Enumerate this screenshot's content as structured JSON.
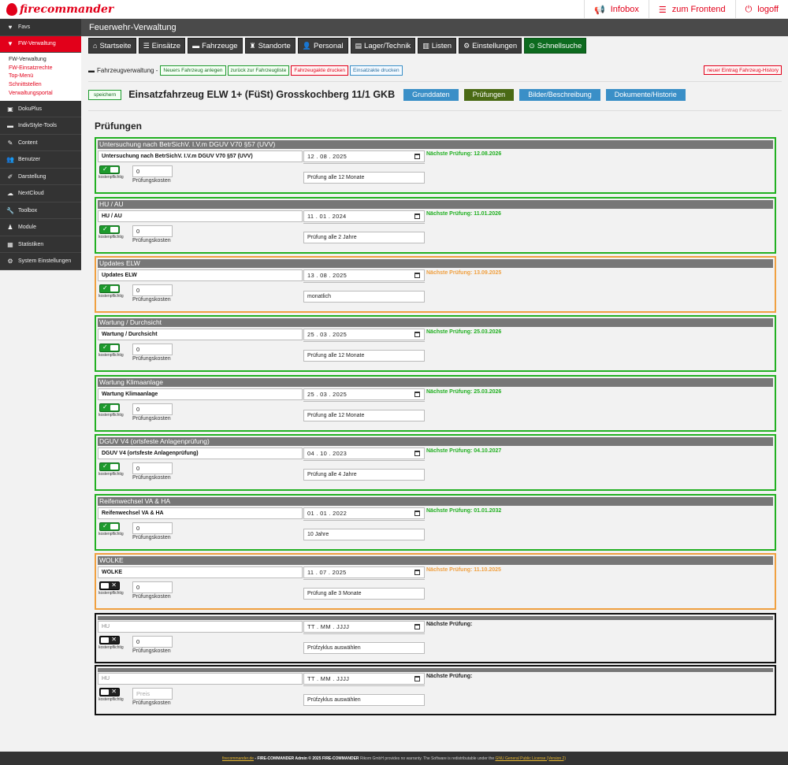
{
  "app": {
    "logo_text": "firecommander",
    "header_title": "Feuerwehr-Verwaltung"
  },
  "topnav": [
    {
      "icon": "bullhorn-icon",
      "glyph": "📢",
      "label": "Infobox"
    },
    {
      "icon": "list-icon",
      "glyph": "☰",
      "label": "zum Frontend"
    },
    {
      "icon": "power-icon",
      "glyph": "⏻",
      "label": "logoff"
    }
  ],
  "sidebar": {
    "items_top": [
      {
        "icon": "heart-icon",
        "glyph": "♥",
        "label": "Favs",
        "active": false
      },
      {
        "icon": "fire-extinguisher-icon",
        "glyph": "▼",
        "label": "FW-Verwaltung",
        "active": true
      }
    ],
    "submenu": [
      {
        "label": "FW-Verwaltung",
        "current": true
      },
      {
        "label": "FW-Einsatzrechte",
        "current": false
      },
      {
        "label": "Top-Menü",
        "current": false
      },
      {
        "label": "Schnittstellen",
        "current": false
      },
      {
        "label": "Verwaltungsportal",
        "current": false
      }
    ],
    "items_bottom": [
      {
        "icon": "doku-icon",
        "glyph": "▣",
        "label": "DokuPlus"
      },
      {
        "icon": "folder-icon",
        "glyph": "▬",
        "label": "IndivStyle-Tools"
      },
      {
        "icon": "pencil-icon",
        "glyph": "✎",
        "label": "Content"
      },
      {
        "icon": "users-icon",
        "glyph": "👥",
        "label": "Benutzer"
      },
      {
        "icon": "brush-icon",
        "glyph": "✐",
        "label": "Darstellung"
      },
      {
        "icon": "cloud-icon",
        "glyph": "☁",
        "label": "NextCloud"
      },
      {
        "icon": "wrench-icon",
        "glyph": "🔧",
        "label": "Toolbox"
      },
      {
        "icon": "modules-icon",
        "glyph": "♟",
        "label": "Module"
      },
      {
        "icon": "chart-icon",
        "glyph": "▦",
        "label": "Statistiken"
      },
      {
        "icon": "cogs-icon",
        "glyph": "⚙",
        "label": "System Einstellungen"
      }
    ]
  },
  "mainnav": [
    {
      "icon": "home-icon",
      "glyph": "⌂",
      "label": "Startseite",
      "green": false
    },
    {
      "icon": "list-icon",
      "glyph": "☰",
      "label": "Einsätze",
      "green": false
    },
    {
      "icon": "truck-icon",
      "glyph": "▬",
      "label": "Fahrzeuge",
      "green": false
    },
    {
      "icon": "building-icon",
      "glyph": "♜",
      "label": "Standorte",
      "green": false
    },
    {
      "icon": "user-icon",
      "glyph": "👤",
      "label": "Personal",
      "green": false
    },
    {
      "icon": "storage-icon",
      "glyph": "▤",
      "label": "Lager/Technik",
      "green": false
    },
    {
      "icon": "chart-bar-icon",
      "glyph": "▥",
      "label": "Listen",
      "green": false
    },
    {
      "icon": "gear-icon",
      "glyph": "⚙",
      "label": "Einstellungen",
      "green": false
    },
    {
      "icon": "circle-check-icon",
      "glyph": "⊙",
      "label": "Schnellsuche",
      "green": true
    }
  ],
  "toolbar": {
    "label": "Fahrzeugverwaltung -",
    "buttons": [
      {
        "label": "Neuers Fahrzeug anlegen",
        "style": "g"
      },
      {
        "label": "zurück zur Fahrzeugliste",
        "style": "g"
      },
      {
        "label": "Fahrzeugakte drucken",
        "style": "r"
      },
      {
        "label": "Einsatzakte drucken",
        "style": "b"
      }
    ],
    "history_label": "neuer Eintrag Fahrzeug-History"
  },
  "vehicle": {
    "save_label": "speichern",
    "title": "Einsatzfahrzeug ELW 1+ (FüSt) Grosskochberg 11/1 GKB",
    "tabs": [
      {
        "label": "Grunddaten",
        "style": "blue"
      },
      {
        "label": "Prüfungen",
        "style": "olive"
      },
      {
        "label": "Bilder/Beschreibung",
        "style": "blue"
      },
      {
        "label": "Dokumente/Historie",
        "style": "blue"
      }
    ]
  },
  "section_title": "Prüfungen",
  "labels": {
    "kostenpflichtig": "kostenpflichtig",
    "pruefungskosten": "Prüfungskosten",
    "naechste": "Nächste Prüfung:"
  },
  "inspections": [
    {
      "header": "Untersuchung nach BetrSichV. I.V.m DGUV V70 §57 (UVV)",
      "name": "Untersuchung nach BetrSichV. I.V.m DGUV V70 §57 (UVV)",
      "date": "12 . 08 . 2025",
      "next": "Nächste Prüfung: 12.08.2026",
      "status": "green",
      "toggle_on": true,
      "price": "0",
      "cycle": "Prüfung alle 12 Monate"
    },
    {
      "header": "HU / AU",
      "name": "HU / AU",
      "date": "11 . 01 . 2024",
      "next": "Nächste Prüfung: 11.01.2026",
      "status": "green",
      "toggle_on": true,
      "price": "0",
      "cycle": "Prüfung alle 2 Jahre"
    },
    {
      "header": "Updates ELW",
      "name": "Updates ELW",
      "date": "13 . 08 . 2025",
      "next": "Nächste Prüfung: 13.09.2025",
      "status": "orange",
      "toggle_on": true,
      "price": "0",
      "cycle": "monatlich"
    },
    {
      "header": "Wartung / Durchsicht",
      "name": "Wartung / Durchsicht",
      "date": "25 . 03 . 2025",
      "next": "Nächste Prüfung: 25.03.2026",
      "status": "green",
      "toggle_on": true,
      "price": "0",
      "cycle": "Prüfung alle 12 Monate"
    },
    {
      "header": "Wartung Klimaanlage",
      "name": "Wartung Klimaanlage",
      "date": "25 . 03 . 2025",
      "next": "Nächste Prüfung: 25.03.2026",
      "status": "green",
      "toggle_on": true,
      "price": "0",
      "cycle": "Prüfung alle 12 Monate"
    },
    {
      "header": "DGUV V4 (ortsfeste Anlagenprüfung)",
      "name": "DGUV V4 (ortsfeste Anlagenprüfung)",
      "date": "04 . 10 . 2023",
      "next": "Nächste Prüfung: 04.10.2027",
      "status": "green",
      "toggle_on": true,
      "price": "0",
      "cycle": "Prüfung alle 4 Jahre"
    },
    {
      "header": "Reifenwechsel VA & HA",
      "name": "Reifenwechsel VA & HA",
      "date": "01 . 01 . 2022",
      "next": "Nächste Prüfung: 01.01.2032",
      "status": "green",
      "toggle_on": true,
      "price": "0",
      "cycle": "10 Jahre"
    },
    {
      "header": "WOLKE",
      "name": "WOLKE",
      "date": "11 . 07 . 2025",
      "next": "Nächste Prüfung: 11.10.2025",
      "status": "orange",
      "toggle_on": false,
      "price": "0",
      "cycle": "Prüfung alle 3 Monate"
    },
    {
      "header": "",
      "name": "HU",
      "name_placeholder": true,
      "date": "TT . MM . JJJJ",
      "next": "Nächste Prüfung:",
      "status": "black",
      "toggle_on": false,
      "price": "0",
      "price_placeholder": false,
      "cycle": "Prüfzyklus auswählen"
    },
    {
      "header": "",
      "name": "HU",
      "name_placeholder": true,
      "date": "TT . MM . JJJJ",
      "next": "Nächste Prüfung:",
      "status": "black",
      "toggle_on": false,
      "price": "Preis",
      "price_placeholder": true,
      "cycle": "Prüfzyklus auswählen"
    }
  ],
  "footer": {
    "link": "firecommander.de",
    "bold_text": "- FIRE-COMMANDER Admin © 2025 FIRE-COMMANDER",
    "text": "Rikom GmbH provides no warranty. The Software is redistributable under the",
    "license_link": "GNU General Public License (Version 2)"
  },
  "colors": {
    "brand_red": "#e2001a",
    "ok_green": "#22b022",
    "warn_orange": "#f0a040",
    "dark": "#333333"
  }
}
